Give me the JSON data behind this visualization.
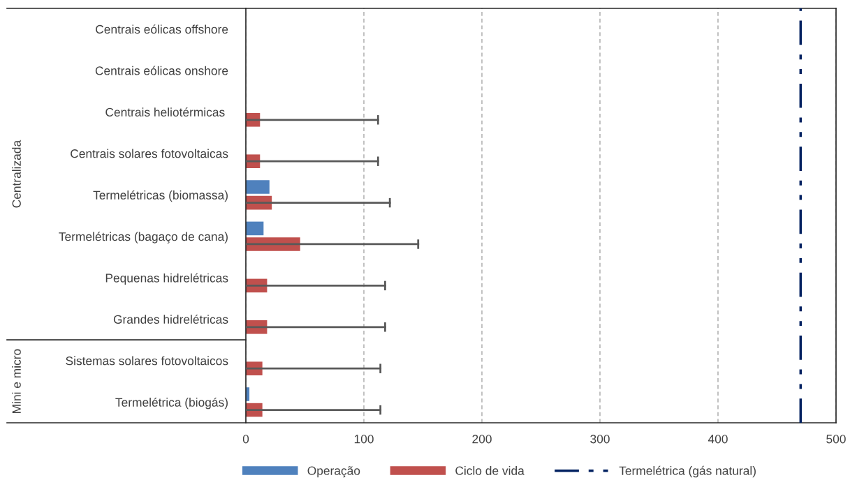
{
  "chart_data": {
    "type": "bar",
    "orientation": "horizontal",
    "categories": [
      "Centrais eólicas offshore",
      "Centrais eólicas onshore",
      "Centrais heliotérmicas ",
      "Centrais solares fotovoltaicas",
      "Termelétricas (biomassa)",
      "Termelétricas (bagaço de cana)",
      "Pequenas hidrelétricas",
      "Grandes hidrelétricas",
      "Sistemas solares fotovoltaicos",
      "Termelétrica (biogás)"
    ],
    "series": [
      {
        "name": "Operação",
        "color": "#4f81bd",
        "values": [
          null,
          null,
          null,
          null,
          20,
          15,
          null,
          null,
          null,
          3
        ]
      },
      {
        "name": "Ciclo de vida",
        "color": "#c0504d",
        "values": [
          null,
          null,
          12,
          12,
          22,
          46,
          18,
          18,
          14,
          14
        ],
        "errors": [
          null,
          null,
          [
            0,
            112
          ],
          [
            0,
            112
          ],
          [
            0,
            122
          ],
          [
            0,
            146
          ],
          [
            0,
            118
          ],
          [
            0,
            118
          ],
          [
            0,
            114
          ],
          [
            0,
            114
          ]
        ]
      }
    ],
    "xlim": [
      0,
      500
    ],
    "xticks": [
      0,
      100,
      200,
      300,
      400,
      500
    ],
    "grid": "x",
    "legend": "bottom",
    "ref_lines": [
      {
        "axis": "x",
        "value": 470,
        "label": "Termelétrica (gás natural)",
        "color": "#002060",
        "line_style": "dashdotdot"
      }
    ],
    "annotations": [
      "Centralizada",
      "Mini e micro"
    ]
  }
}
